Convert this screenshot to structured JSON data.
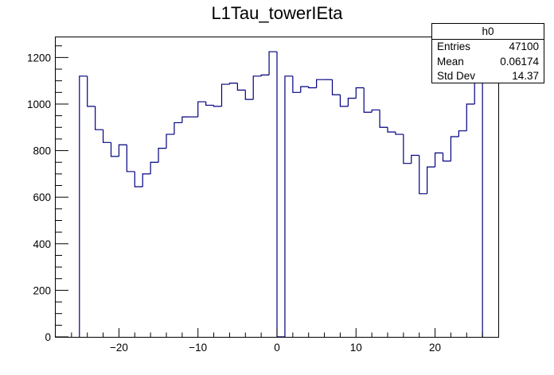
{
  "chart_data": {
    "type": "bar",
    "title": "L1Tau_towerIEta",
    "xlabel": "",
    "ylabel": "",
    "xlim": [
      -28,
      28
    ],
    "ylim": [
      0,
      1290
    ],
    "x_ticks": [
      {
        "value": -20,
        "label": "−20"
      },
      {
        "value": -10,
        "label": "−10"
      },
      {
        "value": 0,
        "label": "0"
      },
      {
        "value": 10,
        "label": "10"
      },
      {
        "value": 20,
        "label": "20"
      }
    ],
    "y_ticks": [
      {
        "value": 0,
        "label": "0"
      },
      {
        "value": 200,
        "label": "200"
      },
      {
        "value": 400,
        "label": "400"
      },
      {
        "value": 600,
        "label": "600"
      },
      {
        "value": 800,
        "label": "800"
      },
      {
        "value": 1000,
        "label": "1000"
      },
      {
        "value": 1200,
        "label": "1200"
      }
    ],
    "bins": [
      {
        "lo": -25,
        "hi": -24,
        "value": 1120
      },
      {
        "lo": -24,
        "hi": -23,
        "value": 990
      },
      {
        "lo": -23,
        "hi": -22,
        "value": 890
      },
      {
        "lo": -22,
        "hi": -21,
        "value": 835
      },
      {
        "lo": -21,
        "hi": -20,
        "value": 775
      },
      {
        "lo": -20,
        "hi": -19,
        "value": 825
      },
      {
        "lo": -19,
        "hi": -18,
        "value": 710
      },
      {
        "lo": -18,
        "hi": -17,
        "value": 645
      },
      {
        "lo": -17,
        "hi": -16,
        "value": 700
      },
      {
        "lo": -16,
        "hi": -15,
        "value": 750
      },
      {
        "lo": -15,
        "hi": -14,
        "value": 810
      },
      {
        "lo": -14,
        "hi": -13,
        "value": 870
      },
      {
        "lo": -13,
        "hi": -12,
        "value": 920
      },
      {
        "lo": -12,
        "hi": -11,
        "value": 945
      },
      {
        "lo": -11,
        "hi": -10,
        "value": 945
      },
      {
        "lo": -10,
        "hi": -9,
        "value": 1010
      },
      {
        "lo": -9,
        "hi": -8,
        "value": 995
      },
      {
        "lo": -8,
        "hi": -7,
        "value": 990
      },
      {
        "lo": -7,
        "hi": -6,
        "value": 1085
      },
      {
        "lo": -6,
        "hi": -5,
        "value": 1090
      },
      {
        "lo": -5,
        "hi": -4,
        "value": 1060
      },
      {
        "lo": -4,
        "hi": -3,
        "value": 1020
      },
      {
        "lo": -3,
        "hi": -2,
        "value": 1120
      },
      {
        "lo": -2,
        "hi": -1,
        "value": 1125
      },
      {
        "lo": -1,
        "hi": 0,
        "value": 1225
      },
      {
        "lo": 0,
        "hi": 1,
        "value": 0
      },
      {
        "lo": 1,
        "hi": 2,
        "value": 1120
      },
      {
        "lo": 2,
        "hi": 3,
        "value": 1050
      },
      {
        "lo": 3,
        "hi": 4,
        "value": 1075
      },
      {
        "lo": 4,
        "hi": 5,
        "value": 1070
      },
      {
        "lo": 5,
        "hi": 6,
        "value": 1105
      },
      {
        "lo": 6,
        "hi": 7,
        "value": 1105
      },
      {
        "lo": 7,
        "hi": 8,
        "value": 1040
      },
      {
        "lo": 8,
        "hi": 9,
        "value": 990
      },
      {
        "lo": 9,
        "hi": 10,
        "value": 1025
      },
      {
        "lo": 10,
        "hi": 11,
        "value": 1070
      },
      {
        "lo": 11,
        "hi": 12,
        "value": 965
      },
      {
        "lo": 12,
        "hi": 13,
        "value": 975
      },
      {
        "lo": 13,
        "hi": 14,
        "value": 900
      },
      {
        "lo": 14,
        "hi": 15,
        "value": 880
      },
      {
        "lo": 15,
        "hi": 16,
        "value": 870
      },
      {
        "lo": 16,
        "hi": 17,
        "value": 745
      },
      {
        "lo": 17,
        "hi": 18,
        "value": 780
      },
      {
        "lo": 18,
        "hi": 19,
        "value": 615
      },
      {
        "lo": 19,
        "hi": 20,
        "value": 730
      },
      {
        "lo": 20,
        "hi": 21,
        "value": 790
      },
      {
        "lo": 21,
        "hi": 22,
        "value": 755
      },
      {
        "lo": 22,
        "hi": 23,
        "value": 860
      },
      {
        "lo": 23,
        "hi": 24,
        "value": 885
      },
      {
        "lo": 24,
        "hi": 25,
        "value": 1000
      },
      {
        "lo": 25,
        "hi": 26,
        "value": 1120
      }
    ],
    "line_color": "#00007f",
    "grid": false,
    "legend": "top-right"
  },
  "stats_box": {
    "name": "h0",
    "rows": [
      {
        "label": "Entries",
        "value": "47100"
      },
      {
        "label": "Mean",
        "value": "0.06174"
      },
      {
        "label": "Std Dev",
        "value": "14.37"
      }
    ]
  }
}
